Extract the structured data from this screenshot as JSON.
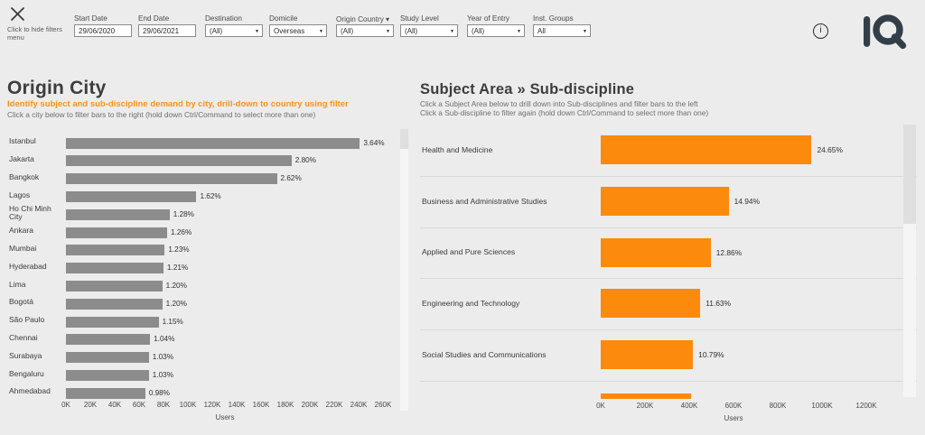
{
  "app": {
    "logo_text": "IQ"
  },
  "topbar": {
    "hide_hint": "Click to hide filters menu",
    "info_icon_glyph": "i",
    "filters": [
      {
        "label": "Start Date",
        "value": "29/06/2020",
        "type": "input"
      },
      {
        "label": "End Date",
        "value": "29/06/2021",
        "type": "input"
      },
      {
        "label": "Destination",
        "value": "(All)",
        "type": "dropdown"
      },
      {
        "label": "Domicile",
        "value": "Overseas",
        "type": "dropdown"
      },
      {
        "label": "Origin Country",
        "value": "(All)",
        "type": "dropdown",
        "label_arrow": true
      },
      {
        "label": "Study Level",
        "value": "(All)",
        "type": "dropdown"
      },
      {
        "label": "Year of Entry",
        "value": "(All)",
        "type": "dropdown"
      },
      {
        "label": "Inst. Groups",
        "value": "All",
        "type": "dropdown"
      }
    ]
  },
  "left_chart": {
    "title": "Origin City",
    "subtitle": "Identify subject and sub-discipline demand by city, drill-down to country using filter",
    "hint": "Click a city below to filter bars to the right (hold down Ctrl/Command to select more than one)"
  },
  "right_chart": {
    "title": "Subject Area » Sub-discipline",
    "hint1": "Click a Subject Area below to drill down into Sub-disciplines and filter bars to the left",
    "hint2": "Click a Sub-discipline to filter again (hold down Ctrl/Command to select more than one)"
  },
  "chart_data": [
    {
      "type": "bar",
      "orientation": "horizontal",
      "title": "Origin City",
      "categories": [
        "Istanbul",
        "Jakarta",
        "Bangkok",
        "Lagos",
        "Ho Chi Minh City",
        "Ankara",
        "Mumbai",
        "Hyderabad",
        "Lima",
        "Bogotá",
        "São Paulo",
        "Chennai",
        "Surabaya",
        "Bengaluru",
        "Ahmedabad"
      ],
      "values_users": [
        241000,
        185000,
        173000,
        107000,
        85000,
        83000,
        81000,
        80000,
        79000,
        79000,
        76000,
        69000,
        68000,
        68000,
        65000
      ],
      "data_labels": [
        "3.64%",
        "2.80%",
        "2.62%",
        "1.62%",
        "1.28%",
        "1.26%",
        "1.23%",
        "1.21%",
        "1.20%",
        "1.20%",
        "1.15%",
        "1.04%",
        "1.03%",
        "1.03%",
        "0.98%"
      ],
      "xlabel": "Users",
      "x_ticks": [
        "0K",
        "20K",
        "40K",
        "60K",
        "80K",
        "100K",
        "120K",
        "140K",
        "160K",
        "180K",
        "200K",
        "220K",
        "240K",
        "260K"
      ],
      "x_tick_step": 20000,
      "x_max": 260000,
      "bar_color": "#8C8C8C",
      "grid": false,
      "legend": false
    },
    {
      "type": "bar",
      "orientation": "horizontal",
      "title": "Subject Area » Sub-discipline",
      "categories": [
        "Health and Medicine",
        "Business and Administrative Studies",
        "Applied and Pure Sciences",
        "Engineering and Technology",
        "Social Studies and Communications"
      ],
      "values_users": [
        953000,
        578000,
        497000,
        450000,
        417000
      ],
      "data_labels": [
        "24.65%",
        "14.94%",
        "12.86%",
        "11.63%",
        "10.79%"
      ],
      "partial_next_bar_users": 410000,
      "xlabel": "Users",
      "x_ticks": [
        "0K",
        "200K",
        "400K",
        "600K",
        "800K",
        "1000K",
        "1200K"
      ],
      "x_tick_step": 200000,
      "x_max": 1200000,
      "bar_color": "#FB8A0D",
      "grid": false,
      "legend": false
    }
  ],
  "colors": {
    "background": "#ECECEC",
    "bar_gray": "#8C8C8C",
    "bar_orange": "#FB8A0D",
    "accent_orange_text": "#F8941C",
    "title_text": "#3D3D3D",
    "hint_text": "#6E6E6E",
    "separator": "#D9D9D9",
    "logo": "#333F48",
    "input_border": "#8A8A8A"
  }
}
